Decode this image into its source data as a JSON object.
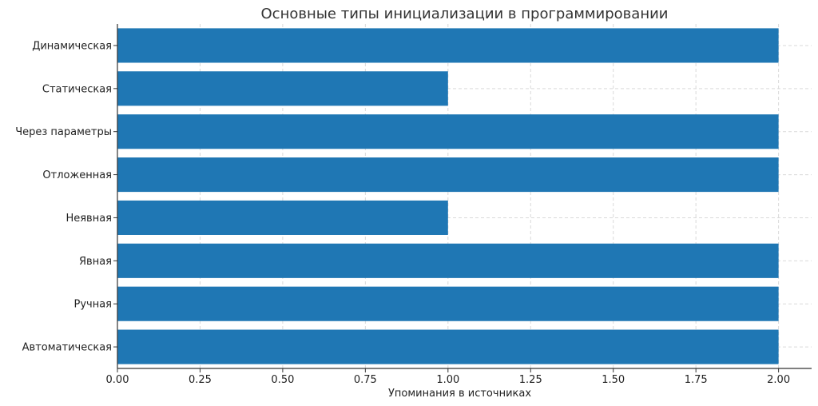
{
  "chart_data": {
    "type": "bar",
    "orientation": "horizontal",
    "title": "Основные типы инициализации в программировании",
    "xlabel": "Упоминания в источниках",
    "ylabel": "",
    "categories": [
      "Автоматическая",
      "Ручная",
      "Явная",
      "Неявная",
      "Отложенная",
      "Через параметры",
      "Статическая",
      "Динамическая"
    ],
    "values": [
      2,
      2,
      2,
      1,
      2,
      2,
      1,
      2
    ],
    "xlim": [
      0,
      2.1
    ],
    "xticks": [
      "0.00",
      "0.25",
      "0.50",
      "0.75",
      "1.00",
      "1.25",
      "1.50",
      "1.75",
      "2.00"
    ],
    "grid": true,
    "bar_color": "#1f77b4"
  }
}
